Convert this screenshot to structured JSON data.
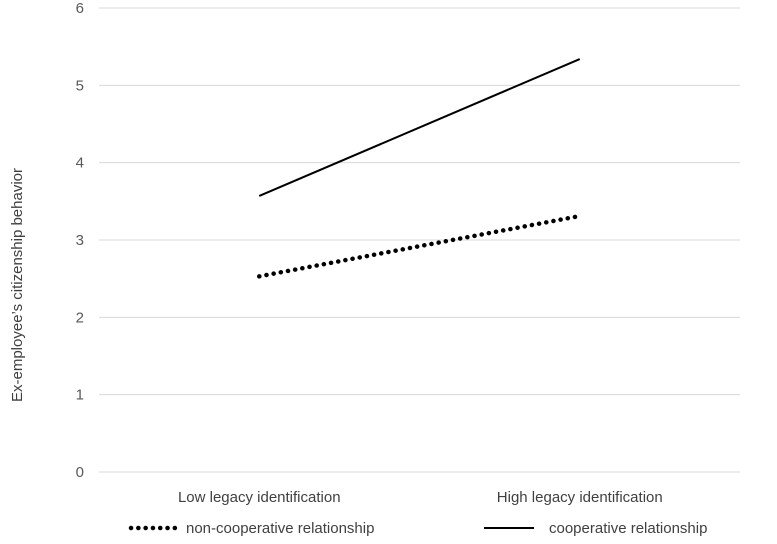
{
  "chart_data": {
    "type": "line",
    "categories": [
      "Low legacy identification",
      "High legacy identification"
    ],
    "series": [
      {
        "name": "non-cooperative relationship",
        "values": [
          2.53,
          3.31
        ],
        "style": "dotted",
        "color": "#000000"
      },
      {
        "name": "cooperative relationship",
        "values": [
          3.57,
          5.34
        ],
        "style": "solid",
        "color": "#000000"
      }
    ],
    "ylabel": "Ex-employee’s citizenship behavior",
    "xlabel": "",
    "ylim": [
      0,
      6
    ],
    "yticks": [
      0,
      1,
      2,
      3,
      4,
      5,
      6
    ],
    "grid": true,
    "legend_position": "bottom"
  }
}
